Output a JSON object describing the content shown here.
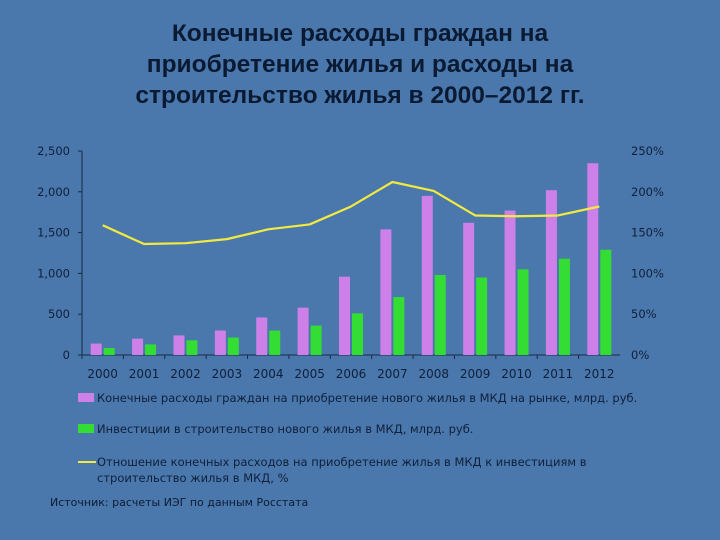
{
  "title_lines": [
    "Конечные расходы граждан на",
    "приобретение жилья и  расходы на",
    "строительство жилья в 2000–2012 гг."
  ],
  "source": "Источник: расчеты ИЭГ по данным Росстата",
  "colors": {
    "background": "#4a78ac",
    "purchase_bar": "#cc80e8",
    "investment_bar": "#33dd33",
    "ratio_line": "#f2ea40",
    "axis_text": "#0f1f3a"
  },
  "chart_data": {
    "type": "bar",
    "categories": [
      "2000",
      "2001",
      "2002",
      "2003",
      "2004",
      "2005",
      "2006",
      "2007",
      "2008",
      "2009",
      "2010",
      "2011",
      "2012"
    ],
    "ylim": [
      0,
      2500
    ],
    "y_ticks": [
      0,
      500,
      1000,
      1500,
      2000,
      2500
    ],
    "y_tick_labels": [
      "0",
      "500",
      "1,000",
      "1,500",
      "2,000",
      "2,500"
    ],
    "y2lim": [
      0,
      250
    ],
    "y2_ticks": [
      0,
      50,
      100,
      150,
      200,
      250
    ],
    "y2_tick_labels": [
      "0%",
      "50%",
      "100%",
      "150%",
      "200%",
      "250%"
    ],
    "series": [
      {
        "name": "Конечные расходы граждан на приобретение нового жилья в МКД на рынке, млрд. руб.",
        "type": "bar",
        "axis": "left",
        "values": [
          140,
          200,
          240,
          300,
          460,
          580,
          960,
          1540,
          1950,
          1620,
          1770,
          2020,
          2350
        ]
      },
      {
        "name": "Инвестиции в строительство нового жилья в МКД, млрд. руб.",
        "type": "bar",
        "axis": "left",
        "values": [
          85,
          130,
          180,
          215,
          300,
          360,
          510,
          710,
          980,
          950,
          1050,
          1180,
          1290
        ]
      },
      {
        "name": "Отношение конечных расходов на приобретение жилья в МКД к инвестициям в строительство жилья в МКД, %",
        "type": "line",
        "axis": "right",
        "values": [
          159,
          136,
          137,
          142,
          154,
          160,
          182,
          212,
          201,
          171,
          170,
          171,
          182
        ]
      }
    ],
    "legend": [
      "Конечные расходы граждан на приобретение нового жилья в МКД на рынке, млрд. руб.",
      "Инвестиции в строительство нового жилья в МКД, млрд. руб.",
      [
        "Отношение конечных расходов на приобретение жилья в МКД к инвестициям в",
        "строительство жилья в МКД, %"
      ]
    ],
    "legend_position": "bottom",
    "grid": false
  }
}
